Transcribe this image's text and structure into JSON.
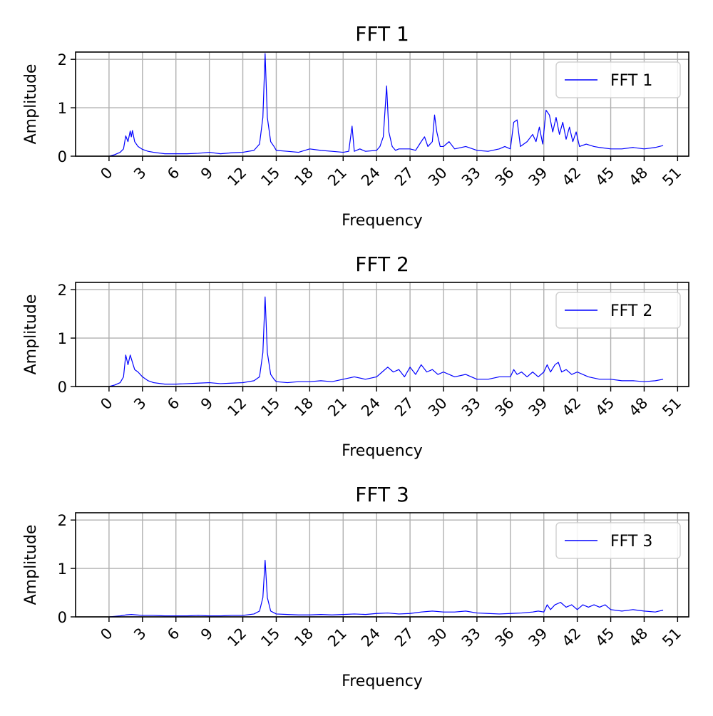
{
  "chart_data": [
    {
      "type": "line",
      "title": "FFT 1",
      "xlabel": "Frequency",
      "ylabel": "Amplitude",
      "xlim": [
        -3,
        52
      ],
      "ylim": [
        0,
        2.15
      ],
      "xticks": [
        "0",
        "3",
        "6",
        "9",
        "12",
        "15",
        "18",
        "21",
        "24",
        "27",
        "30",
        "33",
        "36",
        "39",
        "42",
        "45",
        "48",
        "51"
      ],
      "yticks": [
        "0",
        "1",
        "2"
      ],
      "grid": true,
      "legend_position": "top-right",
      "series": [
        {
          "name": "FFT 1",
          "color": "#0000ff",
          "points": [
            [
              0,
              0.0
            ],
            [
              0.5,
              0.03
            ],
            [
              1.0,
              0.08
            ],
            [
              1.3,
              0.15
            ],
            [
              1.5,
              0.42
            ],
            [
              1.7,
              0.3
            ],
            [
              1.9,
              0.52
            ],
            [
              2.0,
              0.4
            ],
            [
              2.1,
              0.53
            ],
            [
              2.3,
              0.3
            ],
            [
              2.6,
              0.2
            ],
            [
              3.0,
              0.14
            ],
            [
              3.5,
              0.1
            ],
            [
              4.0,
              0.08
            ],
            [
              5.0,
              0.05
            ],
            [
              6.0,
              0.05
            ],
            [
              7.0,
              0.05
            ],
            [
              8.0,
              0.06
            ],
            [
              9.0,
              0.08
            ],
            [
              10.0,
              0.05
            ],
            [
              11.0,
              0.07
            ],
            [
              12.0,
              0.08
            ],
            [
              13.0,
              0.12
            ],
            [
              13.5,
              0.25
            ],
            [
              13.8,
              0.8
            ],
            [
              14.0,
              2.12
            ],
            [
              14.2,
              0.8
            ],
            [
              14.5,
              0.3
            ],
            [
              14.8,
              0.2
            ],
            [
              15.0,
              0.12
            ],
            [
              16.0,
              0.1
            ],
            [
              17.0,
              0.08
            ],
            [
              18.0,
              0.15
            ],
            [
              19.0,
              0.12
            ],
            [
              20.0,
              0.1
            ],
            [
              21.0,
              0.08
            ],
            [
              21.5,
              0.1
            ],
            [
              21.8,
              0.62
            ],
            [
              22.0,
              0.1
            ],
            [
              22.5,
              0.15
            ],
            [
              23.0,
              0.1
            ],
            [
              24.0,
              0.12
            ],
            [
              24.3,
              0.2
            ],
            [
              24.6,
              0.4
            ],
            [
              24.9,
              1.45
            ],
            [
              25.1,
              0.5
            ],
            [
              25.4,
              0.2
            ],
            [
              25.7,
              0.12
            ],
            [
              26.0,
              0.15
            ],
            [
              27.0,
              0.15
            ],
            [
              27.5,
              0.12
            ],
            [
              28.0,
              0.3
            ],
            [
              28.3,
              0.4
            ],
            [
              28.6,
              0.2
            ],
            [
              29.0,
              0.3
            ],
            [
              29.2,
              0.85
            ],
            [
              29.4,
              0.5
            ],
            [
              29.7,
              0.2
            ],
            [
              30.0,
              0.2
            ],
            [
              30.5,
              0.3
            ],
            [
              31.0,
              0.15
            ],
            [
              32.0,
              0.2
            ],
            [
              33.0,
              0.12
            ],
            [
              34.0,
              0.1
            ],
            [
              35.0,
              0.15
            ],
            [
              35.5,
              0.2
            ],
            [
              36.0,
              0.15
            ],
            [
              36.3,
              0.7
            ],
            [
              36.6,
              0.75
            ],
            [
              36.9,
              0.2
            ],
            [
              37.5,
              0.3
            ],
            [
              38.0,
              0.45
            ],
            [
              38.3,
              0.3
            ],
            [
              38.6,
              0.6
            ],
            [
              38.9,
              0.25
            ],
            [
              39.2,
              0.95
            ],
            [
              39.5,
              0.85
            ],
            [
              39.8,
              0.5
            ],
            [
              40.1,
              0.8
            ],
            [
              40.4,
              0.45
            ],
            [
              40.7,
              0.7
            ],
            [
              41.0,
              0.35
            ],
            [
              41.3,
              0.6
            ],
            [
              41.6,
              0.3
            ],
            [
              41.9,
              0.5
            ],
            [
              42.2,
              0.2
            ],
            [
              42.8,
              0.25
            ],
            [
              43.5,
              0.2
            ],
            [
              44.0,
              0.18
            ],
            [
              45.0,
              0.15
            ],
            [
              46.0,
              0.15
            ],
            [
              47.0,
              0.18
            ],
            [
              48.0,
              0.15
            ],
            [
              49.0,
              0.18
            ],
            [
              49.7,
              0.22
            ]
          ]
        }
      ]
    },
    {
      "type": "line",
      "title": "FFT 2",
      "xlabel": "Frequency",
      "ylabel": "Amplitude",
      "xlim": [
        -3,
        52
      ],
      "ylim": [
        0,
        2.15
      ],
      "xticks": [
        "0",
        "3",
        "6",
        "9",
        "12",
        "15",
        "18",
        "21",
        "24",
        "27",
        "30",
        "33",
        "36",
        "39",
        "42",
        "45",
        "48",
        "51"
      ],
      "yticks": [
        "0",
        "1",
        "2"
      ],
      "grid": true,
      "legend_position": "top-right",
      "series": [
        {
          "name": "FFT 2",
          "color": "#0000ff",
          "points": [
            [
              0,
              0.0
            ],
            [
              0.5,
              0.03
            ],
            [
              1.0,
              0.08
            ],
            [
              1.3,
              0.2
            ],
            [
              1.5,
              0.65
            ],
            [
              1.7,
              0.45
            ],
            [
              1.9,
              0.65
            ],
            [
              2.1,
              0.5
            ],
            [
              2.3,
              0.35
            ],
            [
              2.6,
              0.3
            ],
            [
              3.0,
              0.2
            ],
            [
              3.5,
              0.12
            ],
            [
              4.0,
              0.08
            ],
            [
              5.0,
              0.05
            ],
            [
              6.0,
              0.05
            ],
            [
              7.0,
              0.06
            ],
            [
              8.0,
              0.07
            ],
            [
              9.0,
              0.08
            ],
            [
              10.0,
              0.06
            ],
            [
              11.0,
              0.07
            ],
            [
              12.0,
              0.08
            ],
            [
              13.0,
              0.12
            ],
            [
              13.5,
              0.2
            ],
            [
              13.8,
              0.7
            ],
            [
              14.0,
              1.85
            ],
            [
              14.2,
              0.7
            ],
            [
              14.5,
              0.25
            ],
            [
              14.8,
              0.15
            ],
            [
              15.0,
              0.1
            ],
            [
              16.0,
              0.08
            ],
            [
              17.0,
              0.1
            ],
            [
              18.0,
              0.1
            ],
            [
              19.0,
              0.12
            ],
            [
              20.0,
              0.1
            ],
            [
              21.0,
              0.15
            ],
            [
              22.0,
              0.2
            ],
            [
              23.0,
              0.15
            ],
            [
              24.0,
              0.2
            ],
            [
              24.5,
              0.3
            ],
            [
              25.0,
              0.4
            ],
            [
              25.5,
              0.3
            ],
            [
              26.0,
              0.35
            ],
            [
              26.5,
              0.2
            ],
            [
              27.0,
              0.4
            ],
            [
              27.5,
              0.25
            ],
            [
              28.0,
              0.45
            ],
            [
              28.5,
              0.3
            ],
            [
              29.0,
              0.35
            ],
            [
              29.5,
              0.25
            ],
            [
              30.0,
              0.3
            ],
            [
              31.0,
              0.2
            ],
            [
              32.0,
              0.25
            ],
            [
              33.0,
              0.15
            ],
            [
              34.0,
              0.15
            ],
            [
              35.0,
              0.2
            ],
            [
              36.0,
              0.2
            ],
            [
              36.3,
              0.35
            ],
            [
              36.6,
              0.25
            ],
            [
              37.0,
              0.3
            ],
            [
              37.5,
              0.2
            ],
            [
              38.0,
              0.3
            ],
            [
              38.5,
              0.2
            ],
            [
              39.0,
              0.3
            ],
            [
              39.3,
              0.45
            ],
            [
              39.6,
              0.3
            ],
            [
              40.0,
              0.45
            ],
            [
              40.3,
              0.5
            ],
            [
              40.6,
              0.3
            ],
            [
              41.0,
              0.35
            ],
            [
              41.5,
              0.25
            ],
            [
              42.0,
              0.3
            ],
            [
              42.5,
              0.25
            ],
            [
              43.0,
              0.2
            ],
            [
              44.0,
              0.15
            ],
            [
              45.0,
              0.15
            ],
            [
              46.0,
              0.12
            ],
            [
              47.0,
              0.12
            ],
            [
              48.0,
              0.1
            ],
            [
              49.0,
              0.12
            ],
            [
              49.7,
              0.15
            ]
          ]
        }
      ]
    },
    {
      "type": "line",
      "title": "FFT 3",
      "xlabel": "Frequency",
      "ylabel": "Amplitude",
      "xlim": [
        -3,
        52
      ],
      "ylim": [
        0,
        2.15
      ],
      "xticks": [
        "0",
        "3",
        "6",
        "9",
        "12",
        "15",
        "18",
        "21",
        "24",
        "27",
        "30",
        "33",
        "36",
        "39",
        "42",
        "45",
        "48",
        "51"
      ],
      "yticks": [
        "0",
        "1",
        "2"
      ],
      "grid": true,
      "legend_position": "top-right",
      "series": [
        {
          "name": "FFT 3",
          "color": "#0000ff",
          "points": [
            [
              0,
              0.0
            ],
            [
              0.5,
              0.01
            ],
            [
              1.0,
              0.02
            ],
            [
              1.5,
              0.04
            ],
            [
              2.0,
              0.05
            ],
            [
              3.0,
              0.03
            ],
            [
              4.0,
              0.03
            ],
            [
              5.0,
              0.02
            ],
            [
              6.0,
              0.02
            ],
            [
              7.0,
              0.02
            ],
            [
              8.0,
              0.03
            ],
            [
              9.0,
              0.02
            ],
            [
              10.0,
              0.02
            ],
            [
              11.0,
              0.03
            ],
            [
              12.0,
              0.03
            ],
            [
              13.0,
              0.06
            ],
            [
              13.5,
              0.12
            ],
            [
              13.8,
              0.4
            ],
            [
              14.0,
              1.17
            ],
            [
              14.2,
              0.4
            ],
            [
              14.5,
              0.12
            ],
            [
              15.0,
              0.06
            ],
            [
              16.0,
              0.05
            ],
            [
              17.0,
              0.04
            ],
            [
              18.0,
              0.04
            ],
            [
              19.0,
              0.05
            ],
            [
              20.0,
              0.04
            ],
            [
              21.0,
              0.05
            ],
            [
              22.0,
              0.06
            ],
            [
              23.0,
              0.05
            ],
            [
              24.0,
              0.07
            ],
            [
              25.0,
              0.08
            ],
            [
              26.0,
              0.06
            ],
            [
              27.0,
              0.07
            ],
            [
              28.0,
              0.1
            ],
            [
              29.0,
              0.12
            ],
            [
              30.0,
              0.1
            ],
            [
              31.0,
              0.1
            ],
            [
              32.0,
              0.12
            ],
            [
              33.0,
              0.08
            ],
            [
              34.0,
              0.07
            ],
            [
              35.0,
              0.06
            ],
            [
              36.0,
              0.07
            ],
            [
              37.0,
              0.08
            ],
            [
              38.0,
              0.1
            ],
            [
              38.5,
              0.12
            ],
            [
              39.0,
              0.1
            ],
            [
              39.3,
              0.25
            ],
            [
              39.6,
              0.15
            ],
            [
              40.0,
              0.25
            ],
            [
              40.5,
              0.3
            ],
            [
              41.0,
              0.2
            ],
            [
              41.5,
              0.25
            ],
            [
              42.0,
              0.15
            ],
            [
              42.5,
              0.25
            ],
            [
              43.0,
              0.2
            ],
            [
              43.5,
              0.25
            ],
            [
              44.0,
              0.2
            ],
            [
              44.5,
              0.25
            ],
            [
              45.0,
              0.15
            ],
            [
              46.0,
              0.12
            ],
            [
              47.0,
              0.15
            ],
            [
              48.0,
              0.12
            ],
            [
              49.0,
              0.1
            ],
            [
              49.7,
              0.14
            ]
          ]
        }
      ]
    }
  ]
}
